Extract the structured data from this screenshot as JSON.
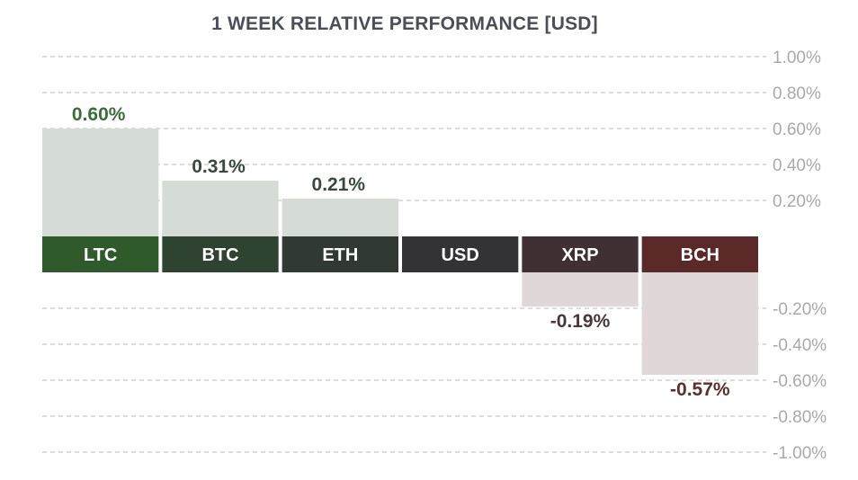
{
  "chart_data": {
    "type": "bar",
    "title": "1 WEEK RELATIVE PERFORMANCE  [USD]",
    "xlabel": "",
    "ylabel": "",
    "ylim": [
      -1.0,
      1.0
    ],
    "grid": true,
    "yticks": [
      {
        "value": 1.0,
        "label": "1.00%"
      },
      {
        "value": 0.8,
        "label": "0.80%"
      },
      {
        "value": 0.6,
        "label": "0.60%"
      },
      {
        "value": 0.4,
        "label": "0.40%"
      },
      {
        "value": 0.2,
        "label": "0.20%"
      },
      {
        "value": -0.2,
        "label": "-0.20%"
      },
      {
        "value": -0.4,
        "label": "-0.40%"
      },
      {
        "value": -0.6,
        "label": "-0.60%"
      },
      {
        "value": -0.8,
        "label": "-0.80%"
      },
      {
        "value": -1.0,
        "label": "-1.00%"
      }
    ],
    "categories": [
      "LTC",
      "BTC",
      "ETH",
      "USD",
      "XRP",
      "BCH"
    ],
    "values": [
      0.6,
      0.31,
      0.21,
      null,
      -0.19,
      -0.57
    ],
    "value_labels": [
      "0.60%",
      "0.31%",
      "0.21%",
      "",
      "-0.19%",
      "-0.57%"
    ],
    "category_colors": [
      "#2f5a2c",
      "#2e4430",
      "#303a32",
      "#333235",
      "#413033",
      "#5a2928"
    ],
    "value_label_colors": [
      "#3b6e37",
      "#394a3c",
      "#394a3c",
      "#333333",
      "#4a3638",
      "#5c2e2d"
    ],
    "bar_colors": {
      "positive": "#d5dbd5",
      "negative": "#e0d8d8"
    },
    "grid_color": "#c8c8c8"
  }
}
